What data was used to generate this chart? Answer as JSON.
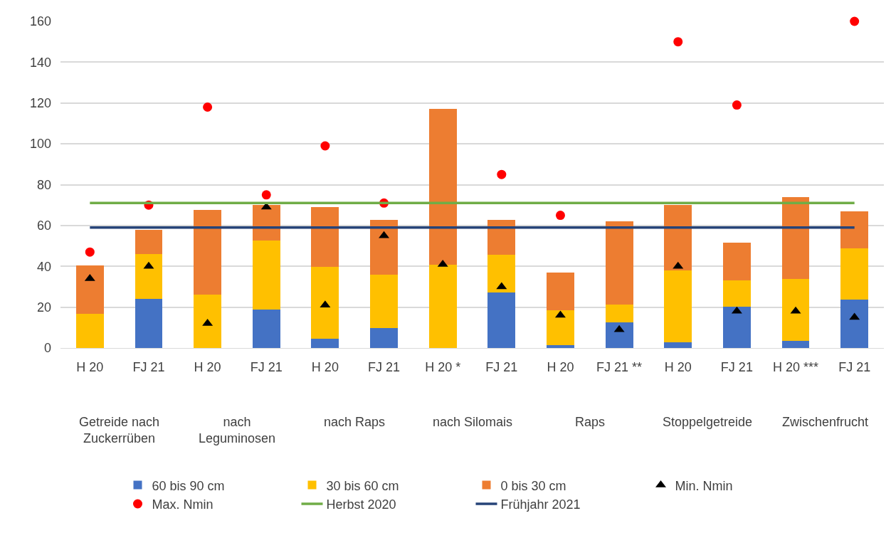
{
  "chart_data": {
    "type": "bar",
    "stacked": true,
    "categories": [
      "H 20",
      "FJ 21",
      "H 20",
      "FJ 21",
      "H 20",
      "FJ 21",
      "H 20 *",
      "FJ 21",
      "H 20",
      "FJ 21 **",
      "H 20",
      "FJ 21",
      "H 20 ***",
      "FJ 21"
    ],
    "annotations": [
      "Getreide nach Zuckerrüben",
      "nach Leguminosen",
      "nach Raps",
      "nach Silomais",
      "Raps",
      "Stoppelgetreide",
      "Zwischenfrucht"
    ],
    "series": [
      {
        "name": "60 bis 90 cm",
        "color": "#4472c4",
        "values": [
          0,
          24,
          0,
          18.7,
          4.4,
          9.8,
          0,
          27.1,
          1.5,
          12.7,
          2.9,
          20.2,
          3.4,
          23.8
        ]
      },
      {
        "name": "30 bis 60 cm",
        "color": "#ffc000",
        "values": [
          16.6,
          22.1,
          26.1,
          33.9,
          35.2,
          26.2,
          40.9,
          18.4,
          17,
          8.5,
          35,
          13,
          30.4,
          24.9
        ]
      },
      {
        "name": "0 bis 30 cm",
        "color": "#ed7d31",
        "values": [
          24,
          11.6,
          41.5,
          17.6,
          29.5,
          26.9,
          76.1,
          17.1,
          18.3,
          41,
          32.3,
          18.5,
          40,
          18.4
        ]
      },
      {
        "name": "Min. Nmin",
        "type": "scatter",
        "marker": "triangle",
        "color": "#000000",
        "values": [
          34,
          40,
          12,
          69,
          21,
          55,
          41,
          30,
          16,
          9,
          40,
          18,
          18,
          15
        ]
      },
      {
        "name": "Max. Nmin",
        "type": "scatter",
        "marker": "circle",
        "color": "#ff0000",
        "values": [
          47,
          70,
          118,
          75,
          99,
          71,
          null,
          85,
          65,
          null,
          150,
          119,
          null,
          160
        ]
      },
      {
        "name": "Herbst 2020",
        "type": "line",
        "color": "#70ad47",
        "values": [
          71,
          71,
          71,
          71,
          71,
          71,
          71,
          71,
          71,
          71,
          71,
          71,
          71,
          71
        ]
      },
      {
        "name": "Frühjahr 2021",
        "type": "line",
        "color": "#264478",
        "values": [
          59,
          59,
          59,
          59,
          59,
          59,
          59,
          59,
          59,
          59,
          59,
          59,
          59,
          59
        ]
      }
    ],
    "ylim": [
      0,
      160
    ],
    "yticks": [
      0,
      20,
      40,
      60,
      80,
      100,
      120,
      140,
      160
    ],
    "grid": "y",
    "legend": "bottom"
  }
}
